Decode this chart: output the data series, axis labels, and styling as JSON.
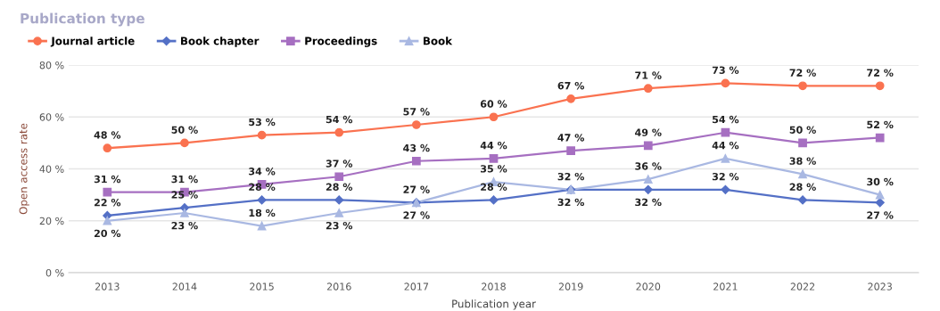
{
  "chart_data": {
    "type": "line",
    "title": "Publication type",
    "xlabel": "Publication year",
    "ylabel": "Open access rate",
    "categories": [
      "2013",
      "2014",
      "2015",
      "2016",
      "2017",
      "2018",
      "2019",
      "2020",
      "2021",
      "2022",
      "2023"
    ],
    "ylim": [
      0,
      80
    ],
    "yticks": [
      {
        "value": 0,
        "label": "0 %"
      },
      {
        "value": 20,
        "label": "20 %"
      },
      {
        "value": 40,
        "label": "40 %"
      },
      {
        "value": 60,
        "label": "60 %"
      },
      {
        "value": 80,
        "label": "80 %"
      }
    ],
    "grid": "y",
    "legend": "top left",
    "line_style": "solid",
    "series": [
      {
        "name": "Journal article",
        "color": "#fa7250",
        "marker": "circle",
        "values": [
          48,
          50,
          53,
          54,
          57,
          60,
          67,
          71,
          73,
          72,
          72
        ],
        "value_labels": [
          "48 %",
          "50 %",
          "53 %",
          "54 %",
          "57 %",
          "60 %",
          "67 %",
          "71 %",
          "73 %",
          "72 %",
          "72 %"
        ]
      },
      {
        "name": "Book chapter",
        "color": "#5470c6",
        "marker": "diamond",
        "values": [
          22,
          25,
          28,
          28,
          27,
          28,
          32,
          32,
          32,
          28,
          27
        ],
        "value_labels": [
          "22 %",
          "25 %",
          "28 %",
          "28 %",
          "27 %",
          "28 %",
          "32 %",
          "32 %",
          "32 %",
          "28 %",
          "27 %"
        ]
      },
      {
        "name": "Proceedings",
        "color": "#a66fc1",
        "marker": "square",
        "values": [
          31,
          31,
          34,
          37,
          43,
          44,
          47,
          49,
          54,
          50,
          52
        ],
        "value_labels": [
          "31 %",
          "31 %",
          "34 %",
          "37 %",
          "43 %",
          "44 %",
          "47 %",
          "49 %",
          "54 %",
          "50 %",
          "52 %"
        ]
      },
      {
        "name": "Book",
        "color": "#a9b8e2",
        "marker": "triangle",
        "values": [
          20,
          23,
          18,
          23,
          27,
          35,
          32,
          36,
          44,
          38,
          30
        ],
        "value_labels": [
          "20 %",
          "23 %",
          "18 %",
          "23 %",
          "27 %",
          "35 %",
          "32 %",
          "36 %",
          "44 %",
          "38 %",
          "30 %"
        ]
      }
    ]
  }
}
